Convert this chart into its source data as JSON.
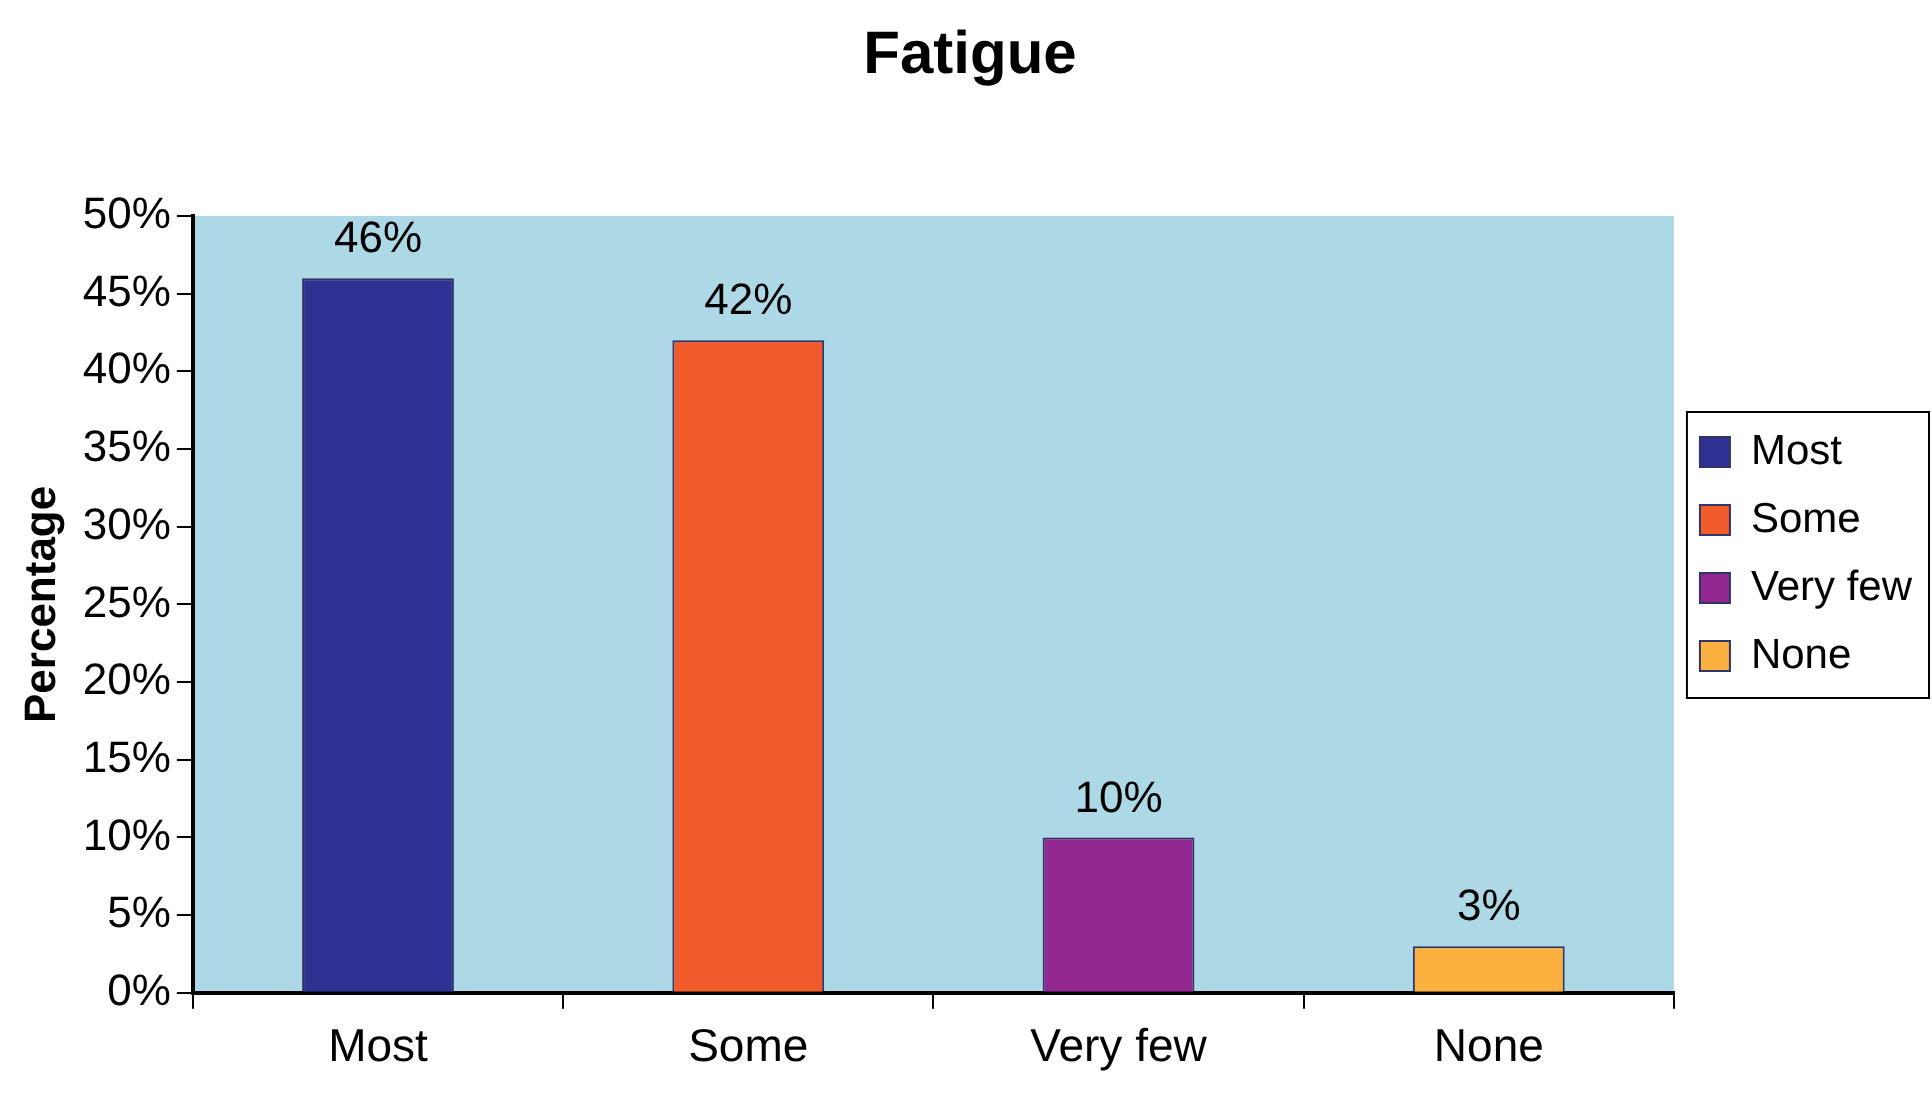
{
  "chart_data": {
    "type": "bar",
    "title": "Fatigue",
    "ylabel": "Percentage",
    "categories": [
      "Most",
      "Some",
      "Very few",
      "None"
    ],
    "series": [
      {
        "name": "Most",
        "color": "#2e3192",
        "values": [
          46,
          null,
          null,
          null
        ],
        "value_labels": [
          "46%",
          null,
          null,
          null
        ]
      },
      {
        "name": "Some",
        "color": "#f15a29",
        "values": [
          null,
          42,
          null,
          null
        ],
        "value_labels": [
          null,
          "42%",
          null,
          null
        ]
      },
      {
        "name": "Very few",
        "color": "#92278f",
        "values": [
          null,
          null,
          10,
          null
        ],
        "value_labels": [
          null,
          null,
          "10%",
          null
        ]
      },
      {
        "name": "None",
        "color": "#fbb040",
        "values": [
          null,
          null,
          null,
          3
        ],
        "value_labels": [
          null,
          null,
          null,
          "3%"
        ]
      }
    ],
    "ylim": [
      0,
      50
    ],
    "yticks": [
      {
        "value": 0,
        "label": "0%"
      },
      {
        "value": 5,
        "label": "5%"
      },
      {
        "value": 10,
        "label": "10%"
      },
      {
        "value": 15,
        "label": "15%"
      },
      {
        "value": 20,
        "label": "20%"
      },
      {
        "value": 25,
        "label": "25%"
      },
      {
        "value": 30,
        "label": "30%"
      },
      {
        "value": 35,
        "label": "35%"
      },
      {
        "value": 40,
        "label": "40%"
      },
      {
        "value": 45,
        "label": "45%"
      },
      {
        "value": 50,
        "label": "50%"
      }
    ],
    "grid": false,
    "legend": "right"
  }
}
